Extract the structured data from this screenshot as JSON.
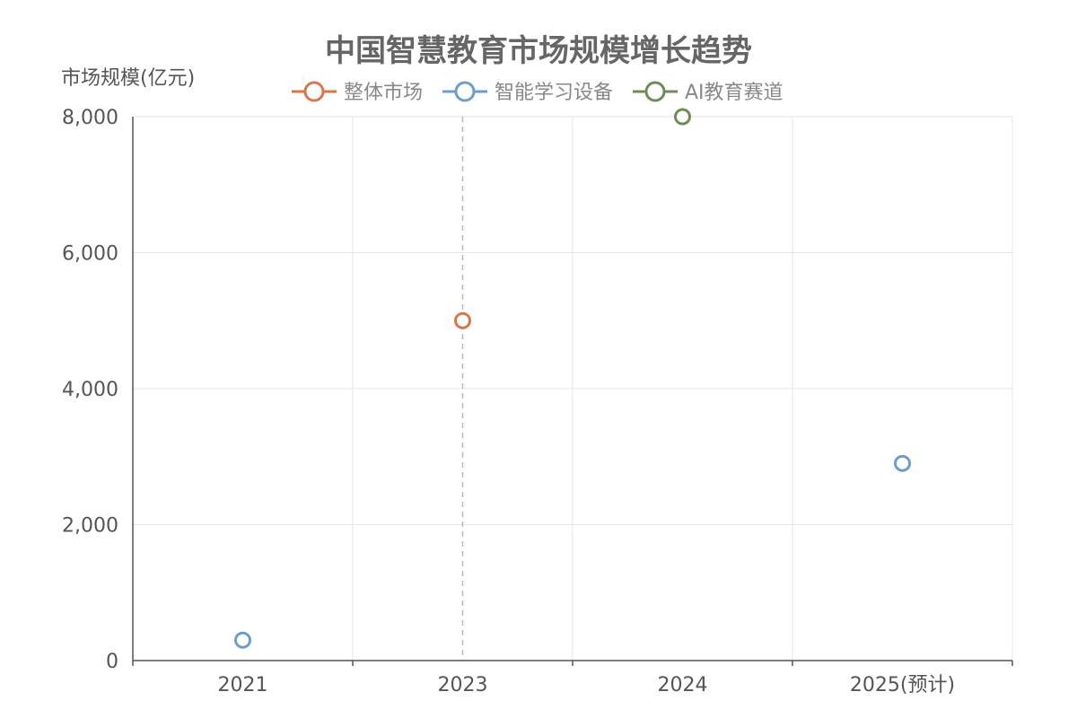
{
  "chart_data": {
    "type": "scatter",
    "title": "中国智慧教育市场规模增长趋势",
    "ylabel": "市场规模(亿元)",
    "xlabel": "",
    "categories": [
      "2021",
      "2023",
      "2024",
      "2025(预计)"
    ],
    "ylim": [
      0,
      8000
    ],
    "yticks": [
      0,
      2000,
      4000,
      6000,
      8000
    ],
    "ytick_labels": [
      "0",
      "2,000",
      "4,000",
      "6,000",
      "8,000"
    ],
    "grid": true,
    "legend_position": "top",
    "highlighted_category": "2023",
    "series": [
      {
        "name": "整体市场",
        "color": "#D9774B",
        "points": [
          {
            "x": "2023",
            "y": 5000
          }
        ]
      },
      {
        "name": "智能学习设备",
        "color": "#6E9DCC",
        "points": [
          {
            "x": "2021",
            "y": 300
          },
          {
            "x": "2025(预计)",
            "y": 2900
          }
        ]
      },
      {
        "name": "AI教育赛道",
        "color": "#6E8C57",
        "points": [
          {
            "x": "2024",
            "y": 8000
          }
        ]
      }
    ]
  }
}
